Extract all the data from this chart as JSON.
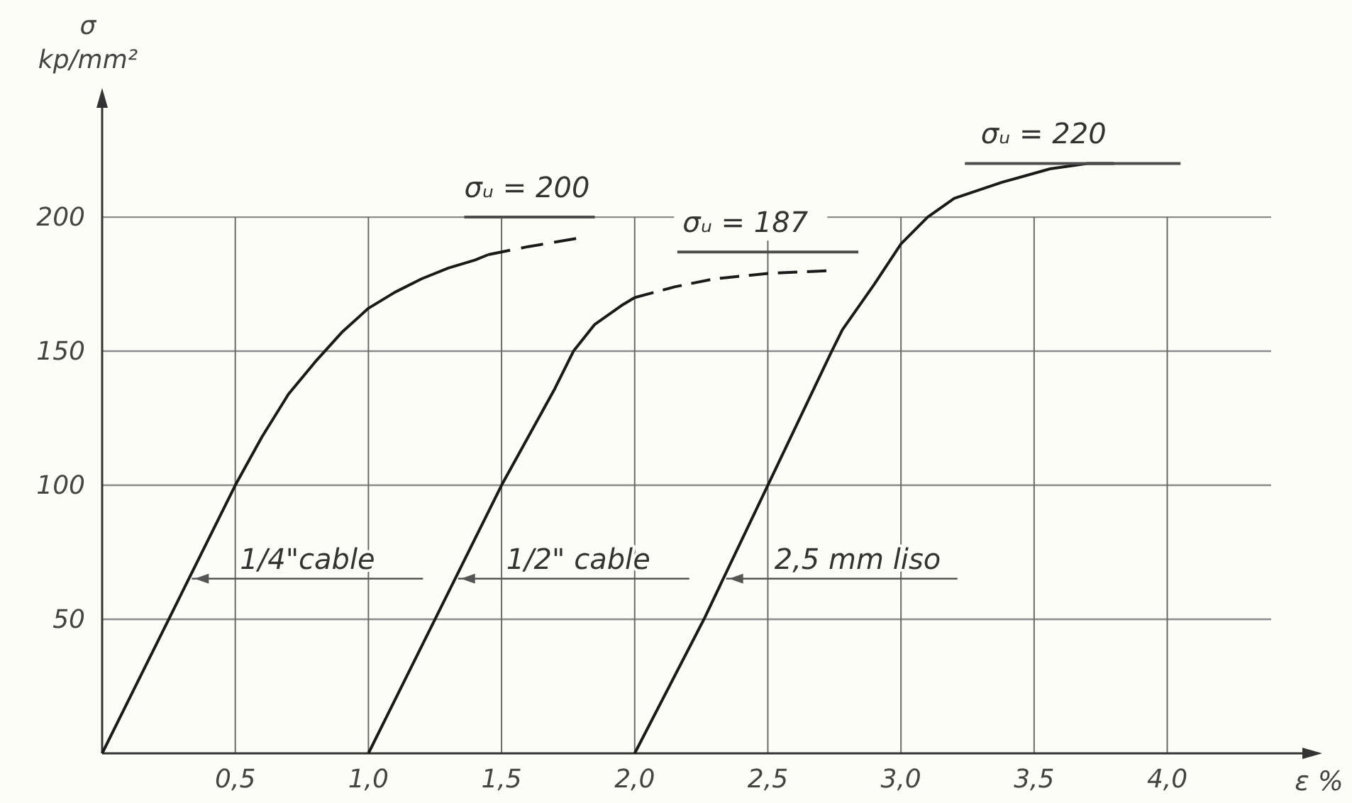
{
  "chart_data": {
    "type": "line",
    "xlabel": "ε %",
    "ylabel": "σ kp/mm²",
    "xlim": [
      0,
      4.55
    ],
    "ylim": [
      0,
      245
    ],
    "xticks": [
      {
        "value": 0.5,
        "label": "0,5"
      },
      {
        "value": 1,
        "label": "1,0"
      },
      {
        "value": 1.5,
        "label": "1,5"
      },
      {
        "value": 2,
        "label": "2,0"
      },
      {
        "value": 2.5,
        "label": "2,5"
      },
      {
        "value": 3,
        "label": "3,0"
      },
      {
        "value": 3.5,
        "label": "3,5"
      },
      {
        "value": 4,
        "label": "4,0"
      }
    ],
    "yticks": [
      50,
      100,
      150,
      200
    ],
    "grid": true,
    "series": [
      {
        "name": "1/4\"cable",
        "color": "#1a1a1a",
        "x": [
          0,
          0.25,
          0.5,
          0.6,
          0.7,
          0.8,
          0.9,
          1.0,
          1.1,
          1.2,
          1.3,
          1.4,
          1.45
        ],
        "values": [
          0,
          50,
          100,
          118,
          134,
          146,
          157,
          166,
          172,
          177,
          181,
          184,
          186
        ]
      },
      {
        "color": "#1a1a1a",
        "line_style": "dashed",
        "x": [
          1.45,
          1.6,
          1.78
        ],
        "values": [
          186,
          189,
          192
        ]
      },
      {
        "name": "1/2\" cable",
        "color": "#1a1a1a",
        "x": [
          1.0,
          1.25,
          1.5,
          1.6,
          1.7,
          1.77,
          1.85,
          1.95,
          2.0
        ],
        "values": [
          0,
          50,
          100,
          118,
          136,
          150,
          160,
          167,
          170
        ]
      },
      {
        "color": "#1a1a1a",
        "line_style": "dashed",
        "x": [
          2.0,
          2.15,
          2.3,
          2.5,
          2.72
        ],
        "values": [
          170,
          174,
          177,
          179,
          180
        ]
      },
      {
        "name": "2,5 mm liso",
        "color": "#1a1a1a",
        "x": [
          2.0,
          2.26,
          2.5,
          2.62,
          2.74,
          2.78,
          2.9,
          3.0,
          3.1,
          3.2,
          3.38,
          3.56,
          3.7,
          3.8
        ],
        "values": [
          0,
          50,
          100,
          125,
          150,
          158,
          175,
          190,
          200,
          207,
          213,
          218,
          220,
          220
        ]
      },
      {
        "color": "#4d4d4d",
        "x": [
          1.36,
          1.85
        ],
        "values": [
          200,
          200
        ]
      },
      {
        "color": "#4d4d4d",
        "x": [
          2.16,
          2.84
        ],
        "values": [
          187,
          187
        ]
      },
      {
        "color": "#4d4d4d",
        "x": [
          3.24,
          4.05
        ],
        "values": [
          220,
          220
        ]
      }
    ],
    "annotations": [
      {
        "text": "σᵤ = 200",
        "x": 1.36,
        "y": 200
      },
      {
        "text": "σᵤ = 187",
        "x": 2.18,
        "y": 187
      },
      {
        "text": "σᵤ = 220",
        "x": 3.3,
        "y": 220
      }
    ]
  }
}
